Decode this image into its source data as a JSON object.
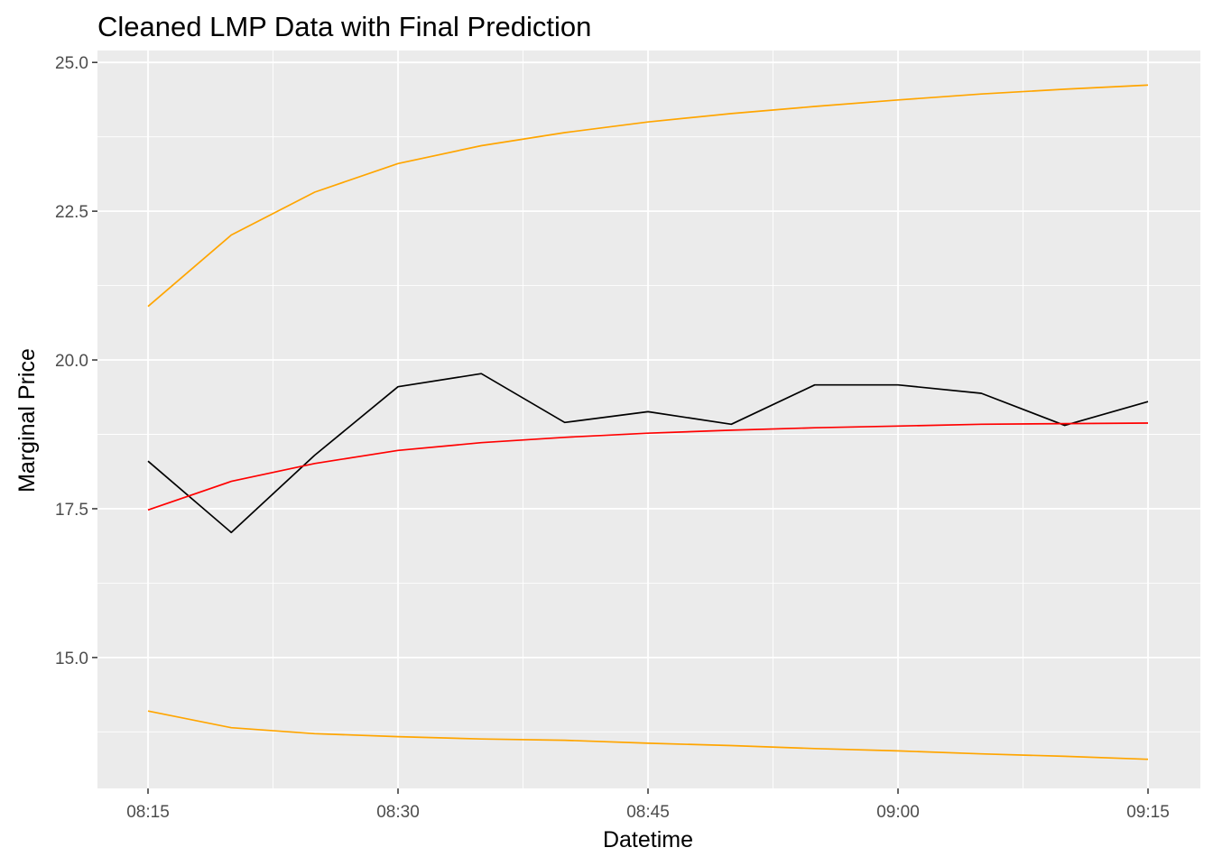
{
  "chart_data": {
    "type": "line",
    "title": "Cleaned LMP Data with Final Prediction",
    "xlabel": "Datetime",
    "ylabel": "Marginal Price",
    "x": [
      "08:15",
      "08:20",
      "08:25",
      "08:30",
      "08:35",
      "08:40",
      "08:45",
      "08:50",
      "08:55",
      "09:00",
      "09:05",
      "09:10",
      "09:15"
    ],
    "x_ticks": [
      "08:15",
      "08:30",
      "08:45",
      "09:00",
      "09:15"
    ],
    "y_ticks": [
      "15.0",
      "17.5",
      "20.0",
      "22.5",
      "25.0"
    ],
    "ylim": [
      12.8,
      25.2
    ],
    "grid": true,
    "panel_background": "#ebebeb",
    "series": [
      {
        "color": "#000000",
        "values": [
          18.3,
          17.1,
          18.4,
          19.55,
          19.77,
          18.95,
          19.13,
          18.92,
          19.58,
          19.58,
          19.44,
          18.9,
          19.3
        ]
      },
      {
        "color": "#ff0000",
        "values": [
          17.48,
          17.96,
          18.26,
          18.48,
          18.61,
          18.7,
          18.77,
          18.82,
          18.86,
          18.89,
          18.92,
          18.93,
          18.94
        ]
      },
      {
        "color": "#ffa500",
        "values": [
          20.9,
          22.1,
          22.82,
          23.3,
          23.6,
          23.82,
          24.0,
          24.14,
          24.26,
          24.37,
          24.47,
          24.55,
          24.62
        ]
      },
      {
        "color": "#ffa500",
        "values": [
          14.1,
          13.82,
          13.72,
          13.67,
          13.63,
          13.61,
          13.56,
          13.52,
          13.47,
          13.43,
          13.38,
          13.34,
          13.29
        ]
      }
    ]
  }
}
